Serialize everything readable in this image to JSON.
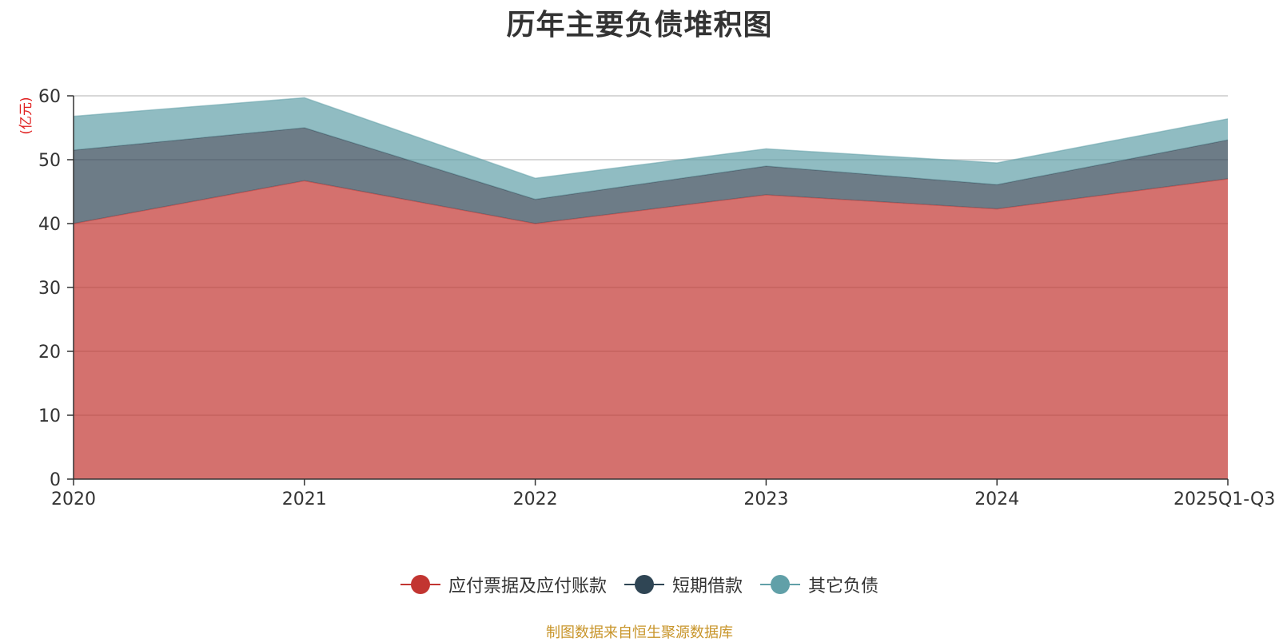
{
  "chart_data": {
    "type": "area",
    "stacked": true,
    "title": "历年主要负债堆积图",
    "ylabel": "(亿元)",
    "xlabel": "",
    "categories": [
      "2020",
      "2021",
      "2022",
      "2023",
      "2024",
      "2025Q1-Q3"
    ],
    "yticks": [
      "0",
      "10",
      "20",
      "30",
      "40",
      "50",
      "60"
    ],
    "ylim": [
      0,
      60
    ],
    "grid": true,
    "legend_position": "bottom",
    "series": [
      {
        "name": "应付票据及应付账款",
        "color": "#c23531",
        "values": [
          40.0,
          46.7,
          40.0,
          44.5,
          42.3,
          47.0
        ]
      },
      {
        "name": "短期借款",
        "color": "#2f4554",
        "values": [
          11.5,
          8.3,
          3.8,
          4.5,
          3.8,
          6.1
        ]
      },
      {
        "name": "其它负债",
        "color": "#61a0a8",
        "values": [
          5.3,
          4.7,
          3.3,
          2.7,
          3.4,
          3.3
        ]
      }
    ]
  },
  "source": "制图数据来自恒生聚源数据库"
}
